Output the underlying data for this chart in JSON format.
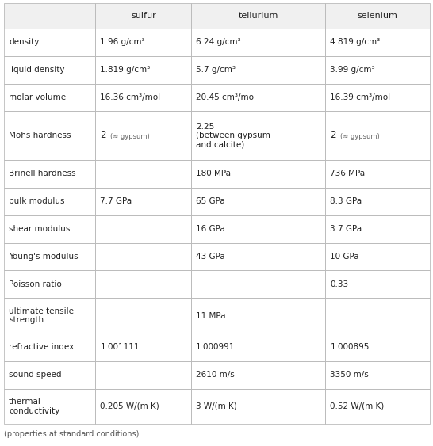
{
  "headers": [
    "",
    "sulfur",
    "tellurium",
    "selenium"
  ],
  "rows": [
    {
      "property": "density",
      "sulfur": "1.96 g/cm³",
      "tellurium": "6.24 g/cm³",
      "selenium": "4.819 g/cm³",
      "sulfur_small": false,
      "selenium_small": false
    },
    {
      "property": "liquid density",
      "sulfur": "1.819 g/cm³",
      "tellurium": "5.7 g/cm³",
      "selenium": "3.99 g/cm³",
      "sulfur_small": false,
      "selenium_small": false
    },
    {
      "property": "molar volume",
      "sulfur": "16.36 cm³/mol",
      "tellurium": "20.45 cm³/mol",
      "selenium": "16.39 cm³/mol",
      "sulfur_small": false,
      "selenium_small": false
    },
    {
      "property": "Mohs hardness",
      "sulfur": "2",
      "sulfur_note": "(≈ gypsum)",
      "tellurium": "2.25\n(between gypsum\nand calcite)",
      "selenium": "2",
      "selenium_note": "(≈ gypsum)",
      "sulfur_small": true,
      "selenium_small": true
    },
    {
      "property": "Brinell hardness",
      "sulfur": "",
      "tellurium": "180 MPa",
      "selenium": "736 MPa",
      "sulfur_small": false,
      "selenium_small": false
    },
    {
      "property": "bulk modulus",
      "sulfur": "7.7 GPa",
      "tellurium": "65 GPa",
      "selenium": "8.3 GPa",
      "sulfur_small": false,
      "selenium_small": false
    },
    {
      "property": "shear modulus",
      "sulfur": "",
      "tellurium": "16 GPa",
      "selenium": "3.7 GPa",
      "sulfur_small": false,
      "selenium_small": false
    },
    {
      "property": "Young's modulus",
      "sulfur": "",
      "tellurium": "43 GPa",
      "selenium": "10 GPa",
      "sulfur_small": false,
      "selenium_small": false
    },
    {
      "property": "Poisson ratio",
      "sulfur": "",
      "tellurium": "",
      "selenium": "0.33",
      "sulfur_small": false,
      "selenium_small": false
    },
    {
      "property": "ultimate tensile\nstrength",
      "sulfur": "",
      "tellurium": "11 MPa",
      "selenium": "",
      "sulfur_small": false,
      "selenium_small": false
    },
    {
      "property": "refractive index",
      "sulfur": "1.001111",
      "tellurium": "1.000991",
      "selenium": "1.000895",
      "sulfur_small": false,
      "selenium_small": false
    },
    {
      "property": "sound speed",
      "sulfur": "",
      "tellurium": "2610 m/s",
      "selenium": "3350 m/s",
      "sulfur_small": false,
      "selenium_small": false
    },
    {
      "property": "thermal\nconductivity",
      "sulfur": "0.205 W/(m K)",
      "tellurium": "3 W/(m K)",
      "selenium": "0.52 W/(m K)",
      "sulfur_small": false,
      "selenium_small": false
    }
  ],
  "footer": "(properties at standard conditions)",
  "bg_color": "#ffffff",
  "header_bg": "#f0f0f0",
  "border_color": "#bbbbbb",
  "text_color": "#222222",
  "small_text_color": "#666666",
  "fig_width": 5.46,
  "fig_height": 5.63,
  "dpi": 100
}
